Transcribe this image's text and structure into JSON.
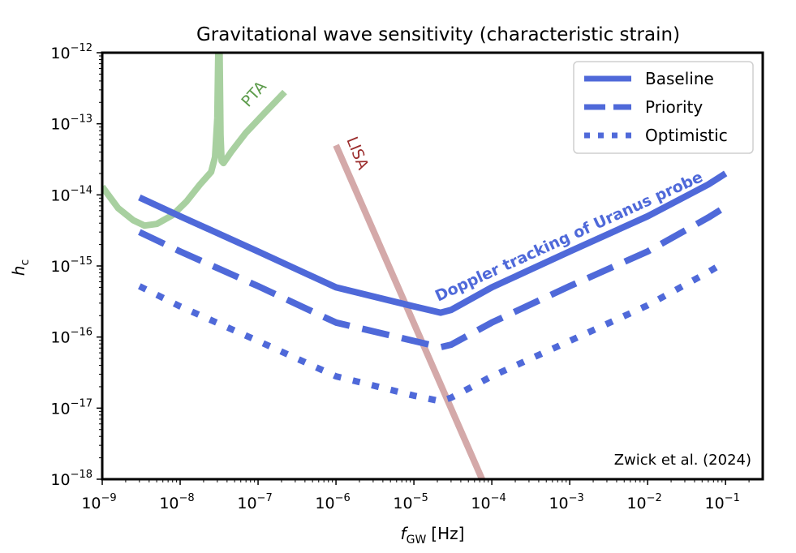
{
  "chart_data": {
    "type": "line",
    "title": "Gravitational wave sensitivity (characteristic strain)",
    "xlabel": {
      "main": "f",
      "sub": "GW",
      "unit": "[Hz]"
    },
    "ylabel": {
      "main": "h",
      "sub": "c"
    },
    "x_scale": "log",
    "y_scale": "log",
    "xlim": [
      1e-09,
      0.3
    ],
    "ylim": [
      1e-18,
      1e-12
    ],
    "x_ticks": [
      {
        "base": "10",
        "exp": "−9",
        "value": -9
      },
      {
        "base": "10",
        "exp": "−8",
        "value": -8
      },
      {
        "base": "10",
        "exp": "−7",
        "value": -7
      },
      {
        "base": "10",
        "exp": "−6",
        "value": -6
      },
      {
        "base": "10",
        "exp": "−5",
        "value": -5
      },
      {
        "base": "10",
        "exp": "−4",
        "value": -4
      },
      {
        "base": "10",
        "exp": "−3",
        "value": -3
      },
      {
        "base": "10",
        "exp": "−2",
        "value": -2
      },
      {
        "base": "10",
        "exp": "−1",
        "value": -1
      }
    ],
    "y_ticks": [
      {
        "base": "10",
        "exp": "−12",
        "value": -12
      },
      {
        "base": "10",
        "exp": "−13",
        "value": -13
      },
      {
        "base": "10",
        "exp": "−14",
        "value": -14
      },
      {
        "base": "10",
        "exp": "−15",
        "value": -15
      },
      {
        "base": "10",
        "exp": "−16",
        "value": -16
      },
      {
        "base": "10",
        "exp": "−17",
        "value": -17
      },
      {
        "base": "10",
        "exp": "−18",
        "value": -18
      }
    ],
    "grid": false,
    "legend_position": "top-right",
    "series": [
      {
        "name": "Baseline",
        "style": "solid",
        "color": "#4f69d9",
        "x": [
          3e-09,
          1e-08,
          1e-07,
          1e-06,
          1e-05,
          2.2e-05,
          3e-05,
          0.0001,
          0.001,
          0.01,
          0.06,
          0.1
        ],
        "y": [
          9.2e-15,
          5e-15,
          1.6e-15,
          5e-16,
          2.7e-16,
          2.2e-16,
          2.4e-16,
          5e-16,
          1.6e-15,
          5e-15,
          1.4e-14,
          2e-14
        ]
      },
      {
        "name": "Priority",
        "style": "dashed",
        "color": "#4f69d9",
        "x": [
          3e-09,
          1e-08,
          1e-07,
          1e-06,
          1e-05,
          2.2e-05,
          3e-05,
          0.0001,
          0.001,
          0.01,
          0.06,
          0.1
        ],
        "y": [
          3e-15,
          1.6e-15,
          5.2e-16,
          1.6e-16,
          8.8e-17,
          7.2e-17,
          7.8e-17,
          1.6e-16,
          5.2e-16,
          1.6e-15,
          4.8e-15,
          6.8e-15
        ]
      },
      {
        "name": "Optimistic",
        "style": "dotted",
        "color": "#4f69d9",
        "x": [
          3e-09,
          1e-08,
          1e-07,
          1e-06,
          1e-05,
          2.2e-05,
          3e-05,
          0.0001,
          0.001,
          0.01,
          0.06,
          0.1
        ],
        "y": [
          5.2e-16,
          2.7e-16,
          8.8e-17,
          2.8e-17,
          1.5e-17,
          1.25e-17,
          1.4e-17,
          2.8e-17,
          8.8e-17,
          2.8e-16,
          8.2e-16,
          1.15e-15
        ]
      },
      {
        "name": "PTA",
        "style": "solid",
        "color": "#a8d0a0",
        "x": [
          1e-09,
          1.6e-09,
          2.5e-09,
          3.5e-09,
          5e-09,
          8e-09,
          1.2e-08,
          1.8e-08,
          2.5e-08,
          2.8e-08,
          3e-08,
          3.1e-08,
          3.2e-08,
          3.3e-08,
          3.4e-08,
          3.6e-08,
          4.5e-08,
          7e-08,
          1.2e-07,
          2.2e-07
        ],
        "y": [
          1.3e-14,
          6.5e-15,
          4.4e-15,
          3.7e-15,
          3.9e-15,
          5.2e-15,
          8e-15,
          1.4e-14,
          2.1e-14,
          3.4e-14,
          1.2e-13,
          1.5e-12,
          1.5e-12,
          7e-14,
          3e-14,
          2.8e-14,
          4e-14,
          7.5e-14,
          1.4e-13,
          2.8e-13
        ]
      },
      {
        "name": "LISA",
        "style": "solid",
        "color": "#d4a9a9",
        "x": [
          1e-06,
          7.5e-05
        ],
        "y": [
          5e-14,
          1e-18
        ]
      }
    ],
    "legend": [
      {
        "label": "Baseline",
        "style": "solid"
      },
      {
        "label": "Priority",
        "style": "dashed"
      },
      {
        "label": "Optimistic",
        "style": "dotted"
      }
    ],
    "annotations": [
      {
        "text": "PTA",
        "color": "#5a9a48"
      },
      {
        "text": "LISA",
        "color": "#9b2c2c"
      },
      {
        "text": "Doppler tracking of Uranus probe",
        "color": "#4f69d9"
      },
      {
        "text": "Zwick et al. (2024)",
        "color": "#000000"
      }
    ]
  }
}
